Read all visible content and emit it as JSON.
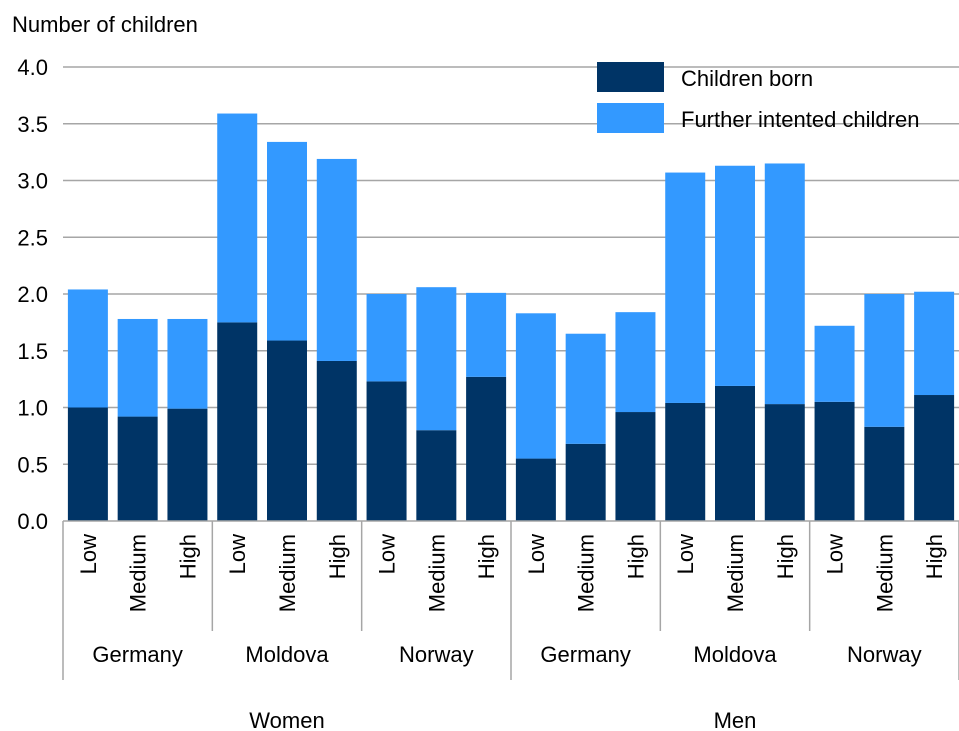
{
  "chart_data": {
    "type": "bar",
    "stacked": true,
    "ylabel": "Number of children",
    "ylim": [
      0,
      4
    ],
    "yticks": [
      "0.0",
      "0.5",
      "1.0",
      "1.5",
      "2.0",
      "2.5",
      "3.0",
      "3.5",
      "4.0"
    ],
    "grid": true,
    "legend_position": "top-right",
    "categories": [
      "Low",
      "Medium",
      "High",
      "Low",
      "Medium",
      "High",
      "Low",
      "Medium",
      "High",
      "Low",
      "Medium",
      "High",
      "Low",
      "Medium",
      "High",
      "Low",
      "Medium",
      "High"
    ],
    "countries": [
      "Germany",
      "Moldova",
      "Norway",
      "Germany",
      "Moldova",
      "Norway"
    ],
    "sexes": [
      "Women",
      "Men"
    ],
    "series": [
      {
        "name": "Children born",
        "color": "#003466",
        "values": [
          1.0,
          0.92,
          0.99,
          1.75,
          1.59,
          1.41,
          1.23,
          0.8,
          1.27,
          0.55,
          0.68,
          0.96,
          1.04,
          1.19,
          1.03,
          1.05,
          0.83,
          1.11
        ]
      },
      {
        "name": "Further intented children",
        "color": "#3399ff",
        "values": [
          1.04,
          0.86,
          0.79,
          1.84,
          1.75,
          1.78,
          0.77,
          1.26,
          0.74,
          1.28,
          0.97,
          0.88,
          2.03,
          1.94,
          2.12,
          0.67,
          1.17,
          0.91
        ]
      }
    ]
  }
}
